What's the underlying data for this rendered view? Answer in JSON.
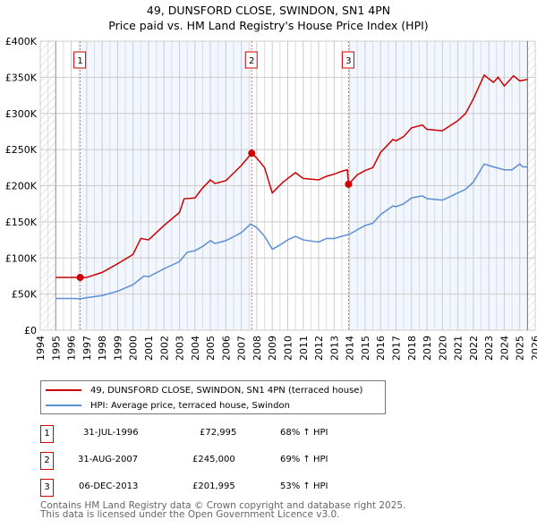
{
  "chart_data": {
    "type": "line",
    "title": "49, DUNSFORD CLOSE, SWINDON, SN1 4PN",
    "subtitle": "Price paid vs. HM Land Registry's House Price Index (HPI)",
    "xlim": [
      1994,
      2026
    ],
    "ylim": [
      0,
      400000
    ],
    "x_ticks": [
      "1994",
      "1995",
      "1996",
      "1997",
      "1998",
      "1999",
      "2000",
      "2001",
      "2002",
      "2003",
      "2004",
      "2005",
      "2006",
      "2007",
      "2008",
      "2009",
      "2010",
      "2011",
      "2012",
      "2013",
      "2014",
      "2015",
      "2016",
      "2017",
      "2018",
      "2019",
      "2020",
      "2021",
      "2022",
      "2023",
      "2024",
      "2025",
      "2026"
    ],
    "y_ticks": [
      {
        "v": 0,
        "label": "£0"
      },
      {
        "v": 50000,
        "label": "£50K"
      },
      {
        "v": 100000,
        "label": "£100K"
      },
      {
        "v": 150000,
        "label": "£150K"
      },
      {
        "v": 200000,
        "label": "£200K"
      },
      {
        "v": 250000,
        "label": "£250K"
      },
      {
        "v": 300000,
        "label": "£300K"
      },
      {
        "v": 350000,
        "label": "£350K"
      },
      {
        "v": 400000,
        "label": "£400K"
      }
    ],
    "grid": true,
    "series": [
      {
        "name": "49, DUNSFORD CLOSE, SWINDON, SN1 4PN (terraced house)",
        "color": "#cc0000",
        "x": [
          1995,
          1996.58,
          1997,
          1998,
          1999,
          2000,
          2000.5,
          2001,
          2002,
          2003,
          2003.3,
          2004,
          2004.5,
          2005,
          2005.3,
          2006,
          2007,
          2007.67,
          2008,
          2008.5,
          2009,
          2009.7,
          2010,
          2010.5,
          2011,
          2012,
          2012.5,
          2013,
          2013.5,
          2013.85,
          2013.93,
          2014.5,
          2015,
          2015.5,
          2016,
          2016.8,
          2017,
          2017.5,
          2018,
          2018.7,
          2019,
          2020,
          2021,
          2021.5,
          2022,
          2022.7,
          2023,
          2023.3,
          2023.6,
          2024,
          2024.6,
          2025,
          2025.5
        ],
        "y": [
          73000,
          72995,
          73000,
          80000,
          92000,
          105000,
          127000,
          125000,
          145000,
          163000,
          182000,
          183000,
          197000,
          208000,
          203000,
          207000,
          228000,
          245000,
          238000,
          225000,
          190000,
          205000,
          210000,
          218000,
          210000,
          208000,
          213000,
          216000,
          220000,
          222000,
          201995,
          215000,
          221000,
          225000,
          246000,
          264000,
          262000,
          268000,
          280000,
          284000,
          278000,
          276000,
          290000,
          300000,
          320000,
          353000,
          348000,
          343000,
          350000,
          338000,
          352000,
          345000,
          347000
        ]
      },
      {
        "name": "HPI: Average price, terraced house, Swindon",
        "color": "#5b8fd4",
        "x": [
          1995,
          1996,
          1996.6,
          1997,
          1998,
          1999,
          2000,
          2000.7,
          2001,
          2002,
          2003,
          2003.5,
          2004,
          2004.5,
          2005,
          2005.3,
          2006,
          2007,
          2007.6,
          2008,
          2008.5,
          2009,
          2009.5,
          2010,
          2010.5,
          2011,
          2012,
          2012.5,
          2013,
          2013.5,
          2014,
          2015,
          2015.5,
          2016,
          2016.8,
          2017,
          2017.5,
          2018,
          2018.7,
          2019,
          2020,
          2021,
          2021.5,
          2022,
          2022.7,
          2023,
          2023.3,
          2024,
          2024.5,
          2025,
          2025.2,
          2025.5
        ],
        "y": [
          44000,
          44000,
          43500,
          45000,
          48000,
          54000,
          63000,
          75000,
          74000,
          85000,
          95000,
          108000,
          110000,
          116000,
          124000,
          120000,
          124000,
          135000,
          147000,
          142000,
          130000,
          112000,
          118000,
          125000,
          130000,
          125000,
          122000,
          127000,
          127000,
          130000,
          133000,
          145000,
          148000,
          160000,
          172000,
          171000,
          175000,
          183000,
          186000,
          182000,
          180000,
          190000,
          195000,
          205000,
          230000,
          228000,
          226000,
          222000,
          222000,
          230000,
          226000,
          226000
        ]
      }
    ],
    "sales": [
      {
        "n": "1",
        "x": 1996.58,
        "date": "31-JUL-1996",
        "price": "£72,995",
        "hpi": "68% ↑ HPI",
        "value": 72995
      },
      {
        "n": "2",
        "x": 2007.67,
        "date": "31-AUG-2007",
        "price": "£245,000",
        "hpi": "69% ↑ HPI",
        "value": 245000
      },
      {
        "n": "3",
        "x": 2013.93,
        "date": "06-DEC-2013",
        "price": "£201,995",
        "hpi": "53% ↑ HPI",
        "value": 201995
      }
    ],
    "data_end": 2025.5
  },
  "footer": {
    "line1": "Contains HM Land Registry data © Crown copyright and database right 2025.",
    "line2": "This data is licensed under the Open Government Licence v3.0."
  }
}
